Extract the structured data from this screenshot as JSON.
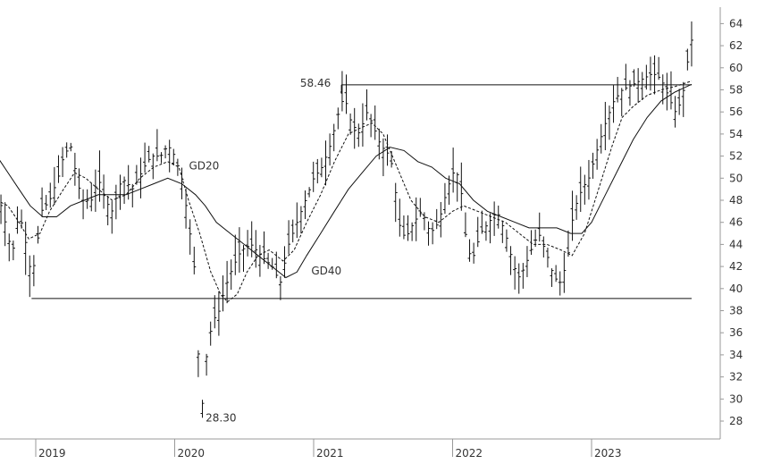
{
  "chart_data": {
    "type": "ohlc",
    "title": "",
    "xlabel": "",
    "ylabel": "",
    "ylim": [
      26,
      65
    ],
    "y_ticks": [
      28,
      30,
      32,
      34,
      36,
      38,
      40,
      42,
      44,
      46,
      48,
      50,
      52,
      54,
      56,
      58,
      60,
      62,
      64
    ],
    "x_ticks": [
      {
        "label": "2019",
        "t": 2019.0
      },
      {
        "label": "2020",
        "t": 2020.0
      },
      {
        "label": "2021",
        "t": 2021.0
      },
      {
        "label": "2022",
        "t": 2022.0
      },
      {
        "label": "2023",
        "t": 2023.0
      }
    ],
    "xlim": [
      2018.72,
      2023.72
    ],
    "grid": false,
    "colors": {
      "bars": "#111111",
      "lines": "#111111",
      "axis": "#999999",
      "text": "#333333"
    },
    "price_anchors": [
      [
        2018.72,
        49
      ],
      [
        2018.78,
        46
      ],
      [
        2018.83,
        43
      ],
      [
        2018.88,
        47
      ],
      [
        2018.93,
        44
      ],
      [
        2018.97,
        41
      ],
      [
        2019.0,
        43
      ],
      [
        2019.04,
        47
      ],
      [
        2019.1,
        48
      ],
      [
        2019.16,
        50
      ],
      [
        2019.2,
        52
      ],
      [
        2019.25,
        53
      ],
      [
        2019.28,
        51
      ],
      [
        2019.33,
        48
      ],
      [
        2019.4,
        48
      ],
      [
        2019.45,
        50
      ],
      [
        2019.5,
        48
      ],
      [
        2019.55,
        47
      ],
      [
        2019.62,
        50
      ],
      [
        2019.7,
        49
      ],
      [
        2019.78,
        51
      ],
      [
        2019.83,
        52
      ],
      [
        2019.9,
        52
      ],
      [
        2019.95,
        53
      ],
      [
        2020.0,
        52
      ],
      [
        2020.05,
        50
      ],
      [
        2020.1,
        46
      ],
      [
        2020.14,
        42
      ],
      [
        2020.17,
        34
      ],
      [
        2020.2,
        29.5
      ],
      [
        2020.23,
        34
      ],
      [
        2020.27,
        37
      ],
      [
        2020.32,
        38
      ],
      [
        2020.36,
        40
      ],
      [
        2020.42,
        42
      ],
      [
        2020.48,
        43.5
      ],
      [
        2020.55,
        44
      ],
      [
        2020.62,
        43
      ],
      [
        2020.7,
        42
      ],
      [
        2020.76,
        40.5
      ],
      [
        2020.82,
        44
      ],
      [
        2020.88,
        46
      ],
      [
        2020.94,
        48
      ],
      [
        2021.0,
        50
      ],
      [
        2021.06,
        51
      ],
      [
        2021.12,
        53
      ],
      [
        2021.18,
        56
      ],
      [
        2021.22,
        57.5
      ],
      [
        2021.27,
        55
      ],
      [
        2021.33,
        54
      ],
      [
        2021.38,
        56
      ],
      [
        2021.42,
        55
      ],
      [
        2021.48,
        53
      ],
      [
        2021.55,
        52
      ],
      [
        2021.58,
        50
      ],
      [
        2021.61,
        46
      ],
      [
        2021.66,
        44.5
      ],
      [
        2021.72,
        46
      ],
      [
        2021.78,
        47
      ],
      [
        2021.84,
        45
      ],
      [
        2021.9,
        46
      ],
      [
        2021.96,
        49
      ],
      [
        2022.02,
        51
      ],
      [
        2022.06,
        49
      ],
      [
        2022.1,
        44
      ],
      [
        2022.14,
        42.5
      ],
      [
        2022.2,
        45
      ],
      [
        2022.26,
        46
      ],
      [
        2022.32,
        47
      ],
      [
        2022.38,
        45
      ],
      [
        2022.44,
        42
      ],
      [
        2022.48,
        41
      ],
      [
        2022.52,
        42
      ],
      [
        2022.58,
        44
      ],
      [
        2022.62,
        45
      ],
      [
        2022.68,
        43
      ],
      [
        2022.73,
        41
      ],
      [
        2022.78,
        40.5
      ],
      [
        2022.83,
        43
      ],
      [
        2022.87,
        47
      ],
      [
        2022.93,
        49
      ],
      [
        2022.98,
        50
      ],
      [
        2023.05,
        53
      ],
      [
        2023.1,
        55
      ],
      [
        2023.16,
        57
      ],
      [
        2023.22,
        58
      ],
      [
        2023.3,
        58.5
      ],
      [
        2023.37,
        59
      ],
      [
        2023.44,
        59.5
      ],
      [
        2023.5,
        59
      ],
      [
        2023.55,
        57.5
      ],
      [
        2023.6,
        56
      ],
      [
        2023.65,
        57
      ],
      [
        2023.69,
        60.5
      ],
      [
        2023.72,
        62.5
      ]
    ],
    "series": [
      {
        "name": "GD20",
        "style": "dashed",
        "points": [
          [
            2018.72,
            48
          ],
          [
            2018.8,
            47.5
          ],
          [
            2018.88,
            46
          ],
          [
            2018.95,
            44.5
          ],
          [
            2019.03,
            45
          ],
          [
            2019.1,
            47
          ],
          [
            2019.2,
            49
          ],
          [
            2019.28,
            50.5
          ],
          [
            2019.36,
            50
          ],
          [
            2019.45,
            49
          ],
          [
            2019.55,
            48
          ],
          [
            2019.65,
            48.5
          ],
          [
            2019.75,
            50
          ],
          [
            2019.85,
            51
          ],
          [
            2019.95,
            51.5
          ],
          [
            2020.03,
            51
          ],
          [
            2020.1,
            48
          ],
          [
            2020.18,
            45
          ],
          [
            2020.26,
            41.5
          ],
          [
            2020.33,
            39.5
          ],
          [
            2020.38,
            38.8
          ],
          [
            2020.45,
            39.5
          ],
          [
            2020.52,
            41.5
          ],
          [
            2020.6,
            43
          ],
          [
            2020.68,
            43.5
          ],
          [
            2020.78,
            42.5
          ],
          [
            2020.86,
            43.5
          ],
          [
            2020.95,
            46
          ],
          [
            2021.05,
            48.5
          ],
          [
            2021.15,
            51.5
          ],
          [
            2021.25,
            54
          ],
          [
            2021.33,
            54.5
          ],
          [
            2021.42,
            55
          ],
          [
            2021.5,
            54
          ],
          [
            2021.6,
            51
          ],
          [
            2021.7,
            48
          ],
          [
            2021.8,
            46.5
          ],
          [
            2021.9,
            46
          ],
          [
            2022.0,
            47
          ],
          [
            2022.08,
            47.5
          ],
          [
            2022.18,
            47
          ],
          [
            2022.28,
            46.5
          ],
          [
            2022.38,
            46
          ],
          [
            2022.48,
            45
          ],
          [
            2022.58,
            44
          ],
          [
            2022.68,
            44
          ],
          [
            2022.78,
            43.5
          ],
          [
            2022.86,
            43
          ],
          [
            2022.95,
            45
          ],
          [
            2023.05,
            49
          ],
          [
            2023.15,
            53
          ],
          [
            2023.22,
            55.5
          ],
          [
            2023.3,
            56.5
          ],
          [
            2023.4,
            57.5
          ],
          [
            2023.5,
            58
          ],
          [
            2023.6,
            58.3
          ],
          [
            2023.72,
            58.8
          ]
        ]
      },
      {
        "name": "GD40",
        "style": "solid",
        "points": [
          [
            2018.72,
            52
          ],
          [
            2018.8,
            50.5
          ],
          [
            2018.88,
            49
          ],
          [
            2018.96,
            47.5
          ],
          [
            2019.05,
            46.5
          ],
          [
            2019.15,
            46.5
          ],
          [
            2019.25,
            47.5
          ],
          [
            2019.35,
            48
          ],
          [
            2019.45,
            48.5
          ],
          [
            2019.55,
            48.5
          ],
          [
            2019.65,
            48.5
          ],
          [
            2019.75,
            49
          ],
          [
            2019.85,
            49.5
          ],
          [
            2019.95,
            50
          ],
          [
            2020.05,
            49.5
          ],
          [
            2020.15,
            48.5
          ],
          [
            2020.22,
            47.5
          ],
          [
            2020.3,
            46
          ],
          [
            2020.4,
            45
          ],
          [
            2020.5,
            44
          ],
          [
            2020.6,
            43
          ],
          [
            2020.7,
            42
          ],
          [
            2020.8,
            41
          ],
          [
            2020.88,
            41.5
          ],
          [
            2020.95,
            43
          ],
          [
            2021.05,
            45
          ],
          [
            2021.15,
            47
          ],
          [
            2021.25,
            49
          ],
          [
            2021.35,
            50.5
          ],
          [
            2021.45,
            52
          ],
          [
            2021.55,
            52.8
          ],
          [
            2021.65,
            52.5
          ],
          [
            2021.75,
            51.5
          ],
          [
            2021.85,
            51
          ],
          [
            2021.95,
            50
          ],
          [
            2022.05,
            49.5
          ],
          [
            2022.15,
            48
          ],
          [
            2022.25,
            47
          ],
          [
            2022.35,
            46.5
          ],
          [
            2022.45,
            46
          ],
          [
            2022.55,
            45.5
          ],
          [
            2022.65,
            45.5
          ],
          [
            2022.75,
            45.5
          ],
          [
            2022.85,
            45
          ],
          [
            2022.93,
            45
          ],
          [
            2023.0,
            46
          ],
          [
            2023.1,
            48.5
          ],
          [
            2023.2,
            51
          ],
          [
            2023.3,
            53.5
          ],
          [
            2023.4,
            55.5
          ],
          [
            2023.5,
            57
          ],
          [
            2023.6,
            57.8
          ],
          [
            2023.72,
            58.5
          ]
        ]
      }
    ],
    "horizontal_lines": [
      {
        "y": 58.46,
        "from": 2021.2,
        "to": 2023.72
      },
      {
        "y": 39.1,
        "from": 2018.97,
        "to": 2023.72
      }
    ],
    "annotations": [
      {
        "text": "58.46",
        "x": 2021.16,
        "y": 58.46
      },
      {
        "text": "28.30",
        "x": 2020.21,
        "y": 28.3
      },
      {
        "text": "GD20",
        "x": 2020.09,
        "y": 51.1
      },
      {
        "text": "GD40",
        "x": 2020.97,
        "y": 41.6
      }
    ],
    "extremes": {
      "low": {
        "t": 2020.2,
        "value": 28.3
      },
      "high_line": {
        "t": 2021.22,
        "value": 58.46
      }
    }
  }
}
